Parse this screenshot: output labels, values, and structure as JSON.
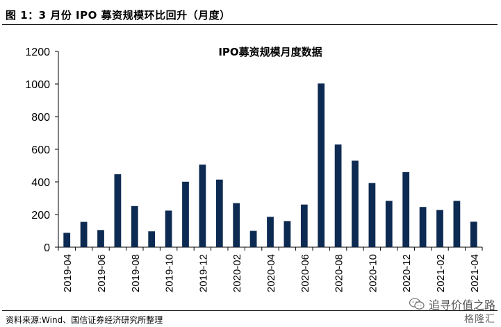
{
  "figure": {
    "title": "图 1：3 月份 IPO 募资规模环比回升（月度）",
    "source": "资料来源:Wind、国信证券经济研究所整理"
  },
  "watermark": {
    "text": "追寻价值之路",
    "brand": "格隆汇",
    "icon": "wechat-icon"
  },
  "chart_data": {
    "type": "bar",
    "title": "IPO募资规模月度数据",
    "categories": [
      "2019-04",
      "2019-05",
      "2019-06",
      "2019-07",
      "2019-08",
      "2019-09",
      "2019-10",
      "2019-11",
      "2019-12",
      "2020-01",
      "2020-02",
      "2020-03",
      "2020-04",
      "2020-05",
      "2020-06",
      "2020-07",
      "2020-08",
      "2020-09",
      "2020-10",
      "2020-11",
      "2020-12",
      "2021-01",
      "2021-02",
      "2021-03",
      "2021-04"
    ],
    "tick_labels": [
      "2019-04",
      "2019-06",
      "2019-08",
      "2019-10",
      "2019-12",
      "2020-02",
      "2020-04",
      "2020-06",
      "2020-08",
      "2020-10",
      "2020-12",
      "2021-02",
      "2021-04"
    ],
    "values": [
      88,
      155,
      105,
      447,
      252,
      97,
      224,
      401,
      506,
      414,
      270,
      100,
      186,
      160,
      261,
      1003,
      629,
      530,
      393,
      284,
      460,
      246,
      228,
      284,
      156
    ],
    "ylim": [
      0,
      1200
    ],
    "yticks": [
      0,
      200,
      400,
      600,
      800,
      1000,
      1200
    ],
    "bar_color": "#0d2a52",
    "grid": false,
    "xlabel": "",
    "ylabel": ""
  }
}
